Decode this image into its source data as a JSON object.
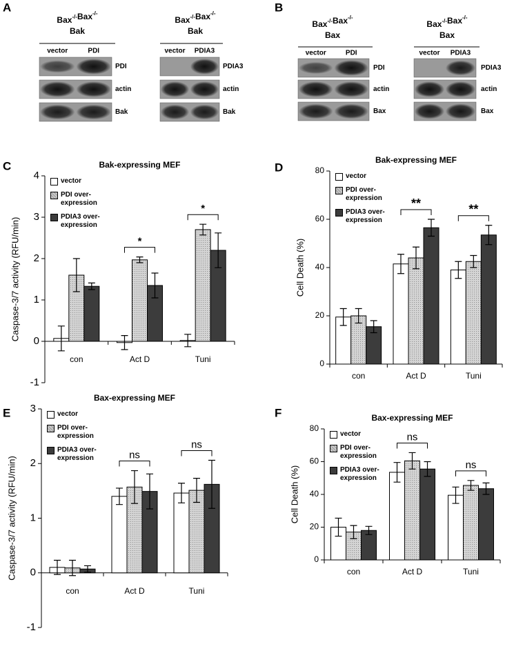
{
  "panels": [
    "A",
    "B",
    "C",
    "D",
    "E",
    "F"
  ],
  "blots": [
    {
      "genotype": [
        {
          "gene": "Bax",
          "sup": "-/-"
        },
        {
          "gene": "Bax",
          "sup": "-/-"
        }
      ],
      "line2": "Bak",
      "lanes": [
        "vector",
        "PDI"
      ],
      "bands": [
        "PDI",
        "actin",
        "Bak"
      ]
    },
    {
      "genotype": [
        {
          "gene": "Bax",
          "sup": "-/-"
        },
        {
          "gene": "Bax",
          "sup": "-/-"
        }
      ],
      "line2": "Bak",
      "lanes": [
        "vector",
        "PDIA3"
      ],
      "bands": [
        "PDIA3",
        "actin",
        "Bak"
      ]
    },
    {
      "genotype": [
        {
          "gene": "Bax",
          "sup": "-/-"
        },
        {
          "gene": "Bax",
          "sup": "-/-"
        }
      ],
      "line2": "Bax",
      "lanes": [
        "vector",
        "PDI"
      ],
      "bands": [
        "PDI",
        "actin",
        "Bax"
      ]
    },
    {
      "genotype": [
        {
          "gene": "Bax",
          "sup": "-/-"
        },
        {
          "gene": "Bax",
          "sup": "-/-"
        }
      ],
      "line2": "Bax",
      "lanes": [
        "vector",
        "PDIA3"
      ],
      "bands": [
        "PDIA3",
        "actin",
        "Bax"
      ]
    }
  ],
  "chart_data": [
    {
      "type": "bar",
      "title": "Bak-expressing MEF",
      "ylabel": "Caspase-3/7 activity (RFU/min)",
      "categories": [
        "con",
        "Act D",
        "Tuni"
      ],
      "series": [
        {
          "name": "vector",
          "color": "#ffffff",
          "values": [
            0.07,
            -0.03,
            0.02
          ],
          "errors": [
            0.3,
            0.17,
            0.15
          ]
        },
        {
          "name": "PDI over-expression",
          "color": "#c8c8c8",
          "values": [
            1.6,
            1.97,
            2.7
          ],
          "errors": [
            0.4,
            0.07,
            0.13
          ]
        },
        {
          "name": "PDIA3 over-expression",
          "color": "#3c3c3c",
          "values": [
            1.33,
            1.35,
            2.2
          ],
          "errors": [
            0.08,
            0.3,
            0.42
          ]
        }
      ],
      "ylim": [
        -1,
        4
      ],
      "yticks": [
        -1,
        0,
        1,
        2,
        3,
        4
      ],
      "legend": "upper left",
      "annotations": [
        {
          "text": "*",
          "category": "Act D"
        },
        {
          "text": "*",
          "category": "Tuni"
        }
      ]
    },
    {
      "type": "bar",
      "title": "Bak-expressing MEF",
      "ylabel": "Cell Death (%)",
      "categories": [
        "con",
        "Act D",
        "Tuni"
      ],
      "series": [
        {
          "name": "vector",
          "color": "#ffffff",
          "values": [
            19.5,
            41.5,
            39
          ],
          "errors": [
            3.5,
            4,
            3.5
          ]
        },
        {
          "name": "PDI over-expression",
          "color": "#c8c8c8",
          "values": [
            20,
            44,
            42.5
          ],
          "errors": [
            3,
            4.5,
            2.5
          ]
        },
        {
          "name": "PDIA3 over-expression",
          "color": "#3c3c3c",
          "values": [
            15.5,
            56.5,
            53.5
          ],
          "errors": [
            2.5,
            3.5,
            4
          ]
        }
      ],
      "ylim": [
        0,
        80
      ],
      "yticks": [
        0,
        20,
        40,
        60,
        80
      ],
      "legend": "upper left",
      "annotations": [
        {
          "text": "**",
          "category": "Act D"
        },
        {
          "text": "**",
          "category": "Tuni"
        }
      ]
    },
    {
      "type": "bar",
      "title": "Bax-expressing MEF",
      "ylabel": "Caspase-3/7 activity (RFU/min)",
      "categories": [
        "con",
        "Act D",
        "Tuni"
      ],
      "series": [
        {
          "name": "vector",
          "color": "#ffffff",
          "values": [
            0.1,
            1.4,
            1.46
          ],
          "errors": [
            0.13,
            0.15,
            0.18
          ]
        },
        {
          "name": "PDI over-expression",
          "color": "#c8c8c8",
          "values": [
            0.09,
            1.57,
            1.51
          ],
          "errors": [
            0.14,
            0.3,
            0.22
          ]
        },
        {
          "name": "PDIA3 over-expression",
          "color": "#3c3c3c",
          "values": [
            0.07,
            1.49,
            1.62
          ],
          "errors": [
            0.06,
            0.32,
            0.44
          ]
        }
      ],
      "ylim": [
        -1,
        3
      ],
      "yticks": [
        -1,
        0,
        1,
        2,
        3
      ],
      "legend": "upper left",
      "annotations": [
        {
          "text": "ns",
          "category": "Act D"
        },
        {
          "text": "ns",
          "category": "Tuni"
        }
      ]
    },
    {
      "type": "bar",
      "title": "Bax-expressing MEF",
      "ylabel": "Cell Death (%)",
      "categories": [
        "con",
        "Act D",
        "Tuni"
      ],
      "series": [
        {
          "name": "vector",
          "color": "#ffffff",
          "values": [
            20,
            53.5,
            39.5
          ],
          "errors": [
            5.5,
            6,
            5
          ]
        },
        {
          "name": "PDI over-expression",
          "color": "#c8c8c8",
          "values": [
            17,
            60.5,
            45.5
          ],
          "errors": [
            4,
            5,
            3
          ]
        },
        {
          "name": "PDIA3 over-expression",
          "color": "#3c3c3c",
          "values": [
            18,
            55.5,
            43.5
          ],
          "errors": [
            2.5,
            4.5,
            3.5
          ]
        }
      ],
      "ylim": [
        0,
        80
      ],
      "yticks": [
        0,
        20,
        40,
        60,
        80
      ],
      "legend": "upper left",
      "annotations": [
        {
          "text": "ns",
          "category": "Act D"
        },
        {
          "text": "ns",
          "category": "Tuni"
        }
      ]
    }
  ]
}
